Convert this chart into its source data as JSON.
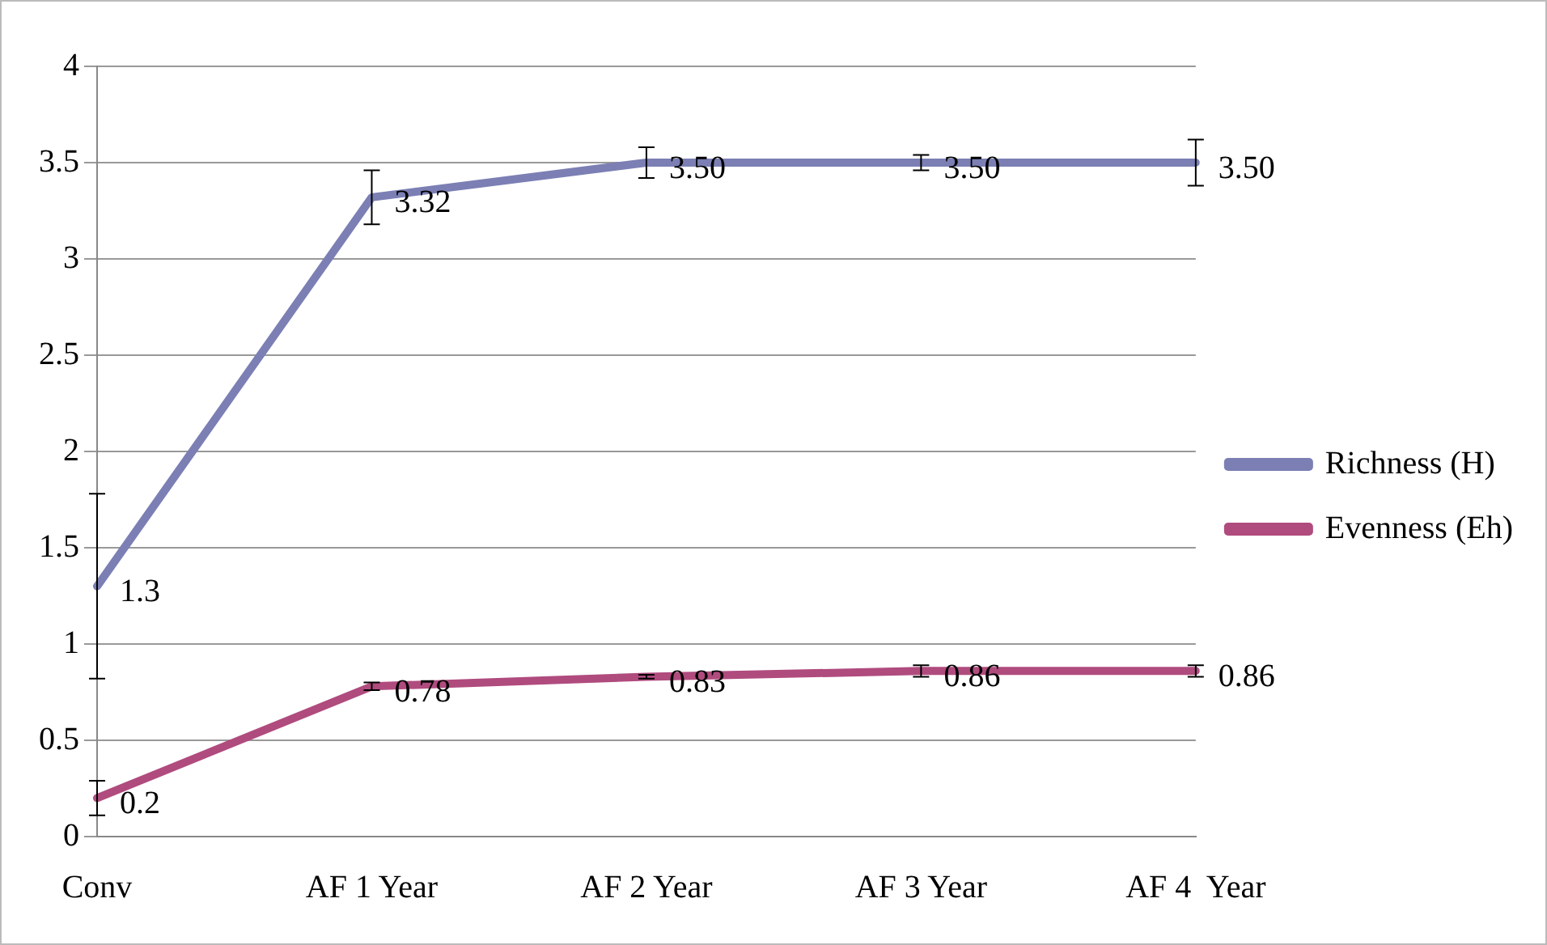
{
  "chart_data": {
    "type": "line",
    "categories": [
      "Conv",
      "AF 1 Year",
      "AF 2 Year",
      "AF 3 Year",
      "AF 4  Year"
    ],
    "series": [
      {
        "name": "Richness (H)",
        "color": "#7b7fb4",
        "values": [
          1.3,
          3.32,
          3.5,
          3.5,
          3.5
        ],
        "errors": [
          0.48,
          0.14,
          0.08,
          0.04,
          0.12
        ],
        "value_labels": [
          "1.3",
          "3.32",
          "3.50",
          "3.50",
          "3.50"
        ]
      },
      {
        "name": "Evenness (Eh)",
        "color": "#b04b7e",
        "values": [
          0.2,
          0.78,
          0.83,
          0.86,
          0.86
        ],
        "errors": [
          0.09,
          0.02,
          0.01,
          0.03,
          0.03
        ],
        "value_labels": [
          "0.2",
          "0.78",
          "0.83",
          "0.86",
          "0.86"
        ]
      }
    ],
    "ylim": [
      0,
      4
    ],
    "yticks": [
      0,
      0.5,
      1,
      1.5,
      2,
      2.5,
      3,
      3.5,
      4
    ],
    "grid": "y",
    "legend": "right",
    "marker": "none",
    "line_style": "solid"
  }
}
